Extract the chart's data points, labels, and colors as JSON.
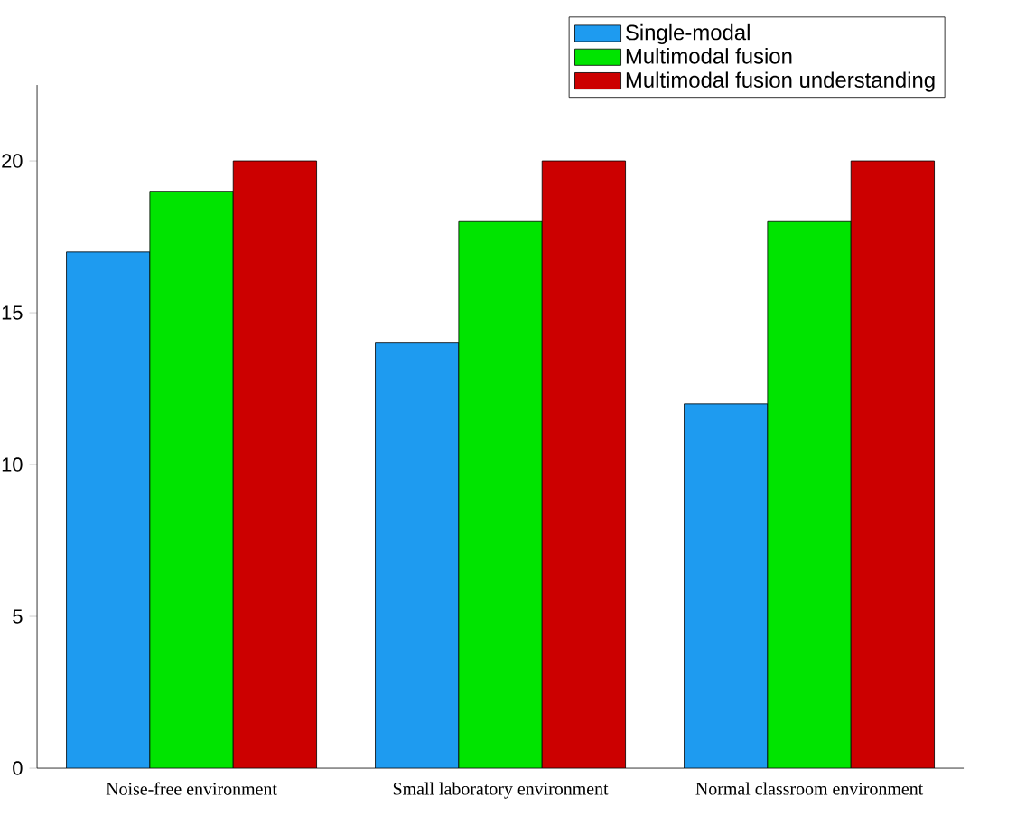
{
  "chart_data": {
    "type": "bar",
    "categories": [
      "Noise-free environment",
      "Small laboratory environment",
      "Normal classroom environment"
    ],
    "series": [
      {
        "name": "Single-modal",
        "color": "#1e9bf0",
        "values": [
          17,
          14,
          12
        ]
      },
      {
        "name": "Multimodal fusion",
        "color": "#00e400",
        "values": [
          19,
          18,
          18
        ]
      },
      {
        "name": "Multimodal fusion understanding",
        "color": "#cc0000",
        "values": [
          20,
          20,
          20
        ]
      }
    ],
    "ylim": [
      0,
      22.5
    ],
    "yticks": [
      0,
      5,
      10,
      15,
      20
    ],
    "grid": false,
    "legend": "top right"
  }
}
